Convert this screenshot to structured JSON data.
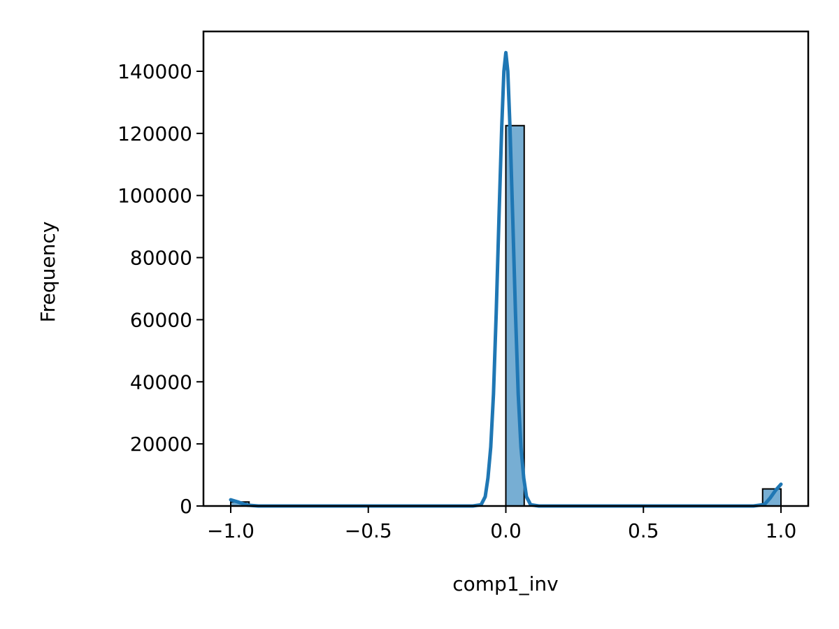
{
  "chart_data": {
    "type": "bar",
    "subtype": "histogram_with_kde",
    "title": "",
    "xlabel": "comp1_inv",
    "ylabel": "Frequency",
    "xlim": [
      -1.1,
      1.1
    ],
    "ylim": [
      0,
      152000
    ],
    "x_ticks": [
      -1.0,
      -0.5,
      0.0,
      0.5,
      1.0
    ],
    "x_tick_labels": [
      "−1.0",
      "−0.5",
      "0.0",
      "0.5",
      "1.0"
    ],
    "y_ticks": [
      0,
      20000,
      40000,
      60000,
      80000,
      100000,
      120000,
      140000
    ],
    "y_tick_labels": [
      "0",
      "20000",
      "40000",
      "60000",
      "80000",
      "100000",
      "120000",
      "140000"
    ],
    "grid": false,
    "bin_width": 0.0667,
    "bars": [
      {
        "x_start": -1.0,
        "x_end": -0.9333,
        "count": 1300
      },
      {
        "x_start": 0.0,
        "x_end": 0.0667,
        "count": 122500
      },
      {
        "x_start": 0.9333,
        "x_end": 1.0,
        "count": 5500
      }
    ],
    "kde": {
      "x": [
        -1.0,
        -0.97,
        -0.94,
        -0.9,
        -0.5,
        -0.12,
        -0.09,
        -0.075,
        -0.065,
        -0.055,
        -0.045,
        -0.035,
        -0.025,
        -0.015,
        -0.007,
        0.0,
        0.007,
        0.015,
        0.025,
        0.035,
        0.045,
        0.055,
        0.065,
        0.075,
        0.09,
        0.12,
        0.5,
        0.9,
        0.94,
        0.96,
        0.98,
        1.0
      ],
      "y": [
        2000,
        1200,
        300,
        0,
        0,
        0,
        400,
        3000,
        9000,
        19000,
        36000,
        62000,
        93000,
        122000,
        140000,
        146000,
        140000,
        122000,
        93000,
        62000,
        36000,
        19000,
        9000,
        3000,
        400,
        0,
        0,
        0,
        500,
        2500,
        5000,
        7000
      ]
    },
    "colors": {
      "bar_fill": "#77aed3",
      "bar_edge": "#000000",
      "kde_line": "#1f77b4"
    }
  }
}
